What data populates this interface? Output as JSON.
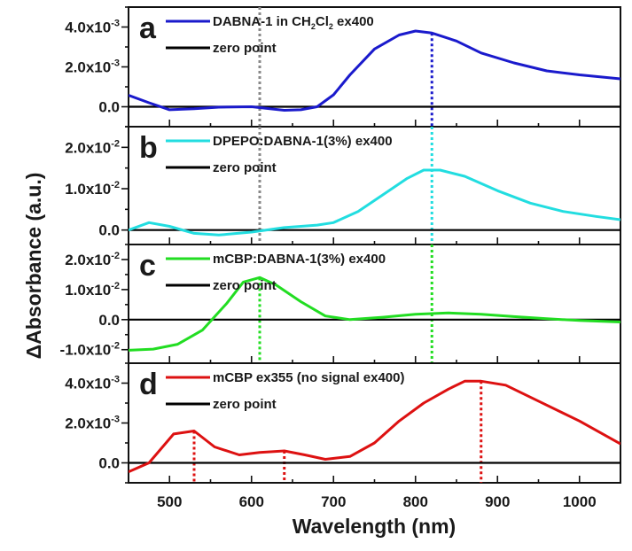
{
  "chart_data": {
    "type": "line",
    "title": "",
    "xlabel": "Wavelength (nm)",
    "ylabel": "ΔAbsorbance (a.u.)",
    "xlim": [
      450,
      1050
    ],
    "x_ticks": [
      500,
      600,
      700,
      800,
      900,
      1000
    ],
    "x_tick_labels": [
      "500",
      "600",
      "700",
      "800",
      "900",
      "1000"
    ],
    "grid": false,
    "panels": [
      {
        "id": "a",
        "label": "a",
        "ylim": [
          -0.001,
          0.005
        ],
        "y_ticks": [
          0.0,
          0.002,
          0.004
        ],
        "y_tick_labels": [
          {
            "mantissa": "0.0",
            "exp": ""
          },
          {
            "mantissa": "2.0x10",
            "exp": "-3"
          },
          {
            "mantissa": "4.0x10",
            "exp": "-3"
          }
        ],
        "legend": [
          {
            "name_parts": [
              [
                "DABNA-1 in CH",
                ""
              ],
              [
                "2",
                "sub"
              ],
              [
                "Cl",
                ""
              ],
              [
                "2",
                "sub"
              ],
              [
                " ex400",
                ""
              ]
            ],
            "color": "#1a1acc"
          },
          {
            "name_parts": [
              [
                "zero point",
                ""
              ]
            ],
            "color": "#000000"
          }
        ],
        "series": [
          {
            "name": "DABNA-1 in CH2Cl2 ex400",
            "color": "#1a1acc",
            "x": [
              450,
              475,
              500,
              530,
              560,
              600,
              640,
              660,
              680,
              700,
              720,
              750,
              780,
              800,
              820,
              850,
              880,
              920,
              960,
              1000,
              1050
            ],
            "y": [
              0.00058,
              0.0002,
              -0.00015,
              -0.0001,
              -2e-05,
              0.0,
              -0.00018,
              -0.00015,
              0.0,
              0.0006,
              0.0016,
              0.0029,
              0.0036,
              0.0038,
              0.0037,
              0.0033,
              0.0027,
              0.0022,
              0.0018,
              0.0016,
              0.0014
            ]
          },
          {
            "name": "zero point",
            "color": "#000000",
            "x": [
              450,
              1050
            ],
            "y": [
              0.0,
              0.0
            ]
          }
        ],
        "markers": [
          {
            "x": 610,
            "color": "#888888",
            "y": 0.0018,
            "span": "full"
          },
          {
            "x": 820,
            "color": "#1a1acc",
            "y": 0.0037
          }
        ]
      },
      {
        "id": "b",
        "label": "b",
        "ylim": [
          -0.0035,
          0.025
        ],
        "y_ticks": [
          0.0,
          0.01,
          0.02
        ],
        "y_tick_labels": [
          {
            "mantissa": "0.0",
            "exp": ""
          },
          {
            "mantissa": "1.0x10",
            "exp": "-2"
          },
          {
            "mantissa": "2.0x10",
            "exp": "-2"
          }
        ],
        "legend": [
          {
            "name_parts": [
              [
                "DPEPO:DABNA-1(3%) ex400",
                ""
              ]
            ],
            "color": "#22dde0"
          },
          {
            "name_parts": [
              [
                "zero point",
                ""
              ]
            ],
            "color": "#000000"
          }
        ],
        "series": [
          {
            "name": "DPEPO:DABNA-1(3%) ex400",
            "color": "#22dde0",
            "x": [
              450,
              475,
              500,
              530,
              560,
              600,
              640,
              680,
              700,
              730,
              760,
              790,
              810,
              830,
              860,
              900,
              940,
              980,
              1020,
              1050
            ],
            "y": [
              0.0,
              0.0018,
              0.0009,
              -0.0008,
              -0.0012,
              -0.0005,
              0.0006,
              0.0012,
              0.0018,
              0.0045,
              0.0085,
              0.0125,
              0.0145,
              0.0145,
              0.013,
              0.0095,
              0.0065,
              0.0045,
              0.0033,
              0.0025
            ]
          },
          {
            "name": "zero point",
            "color": "#000000",
            "x": [
              450,
              1050
            ],
            "y": [
              0.0,
              0.0
            ]
          }
        ],
        "markers": [
          {
            "x": 610,
            "color": "#888888",
            "y": 0.025,
            "span": "full"
          },
          {
            "x": 820,
            "color": "#22dde0",
            "y": 0.025,
            "span": "full"
          }
        ]
      },
      {
        "id": "c",
        "label": "c",
        "ylim": [
          -0.0145,
          0.025
        ],
        "y_ticks": [
          -0.01,
          0.0,
          0.01,
          0.02
        ],
        "y_tick_labels": [
          {
            "mantissa": "-1.0x10",
            "exp": "-2"
          },
          {
            "mantissa": "0.0",
            "exp": ""
          },
          {
            "mantissa": "1.0x10",
            "exp": "-2"
          },
          {
            "mantissa": "2.0x10",
            "exp": "-2"
          }
        ],
        "legend": [
          {
            "name_parts": [
              [
                "mCBP:DABNA-1(3%) ex400",
                ""
              ]
            ],
            "color": "#22dd22"
          },
          {
            "name_parts": [
              [
                "zero point",
                ""
              ]
            ],
            "color": "#000000"
          }
        ],
        "series": [
          {
            "name": "mCBP:DABNA-1(3%) ex400",
            "color": "#22dd22",
            "x": [
              450,
              480,
              510,
              540,
              570,
              590,
              610,
              630,
              660,
              690,
              720,
              760,
              800,
              840,
              880,
              920,
              960,
              1000,
              1050
            ],
            "y": [
              -0.0102,
              -0.0098,
              -0.0082,
              -0.0035,
              0.0055,
              0.0125,
              0.014,
              0.0115,
              0.006,
              0.0012,
              0.0,
              0.0008,
              0.0018,
              0.0022,
              0.0018,
              0.001,
              0.0003,
              -0.0003,
              -0.0008
            ]
          },
          {
            "name": "zero point",
            "color": "#000000",
            "x": [
              450,
              1050
            ],
            "y": [
              0.0,
              0.0
            ]
          }
        ],
        "markers": [
          {
            "x": 610,
            "color": "#22dd22",
            "y": 0.014
          },
          {
            "x": 820,
            "color": "#22dd22",
            "y": 0.025,
            "span": "full"
          }
        ]
      },
      {
        "id": "d",
        "label": "d",
        "ylim": [
          -0.001,
          0.005
        ],
        "y_ticks": [
          0.0,
          0.002,
          0.004
        ],
        "y_tick_labels": [
          {
            "mantissa": "0.0",
            "exp": ""
          },
          {
            "mantissa": "2.0x10",
            "exp": "-3"
          },
          {
            "mantissa": "4.0x10",
            "exp": "-3"
          }
        ],
        "legend": [
          {
            "name_parts": [
              [
                "mCBP ex355 (no signal ex400)",
                ""
              ]
            ],
            "color": "#dd1111"
          },
          {
            "name_parts": [
              [
                "zero point",
                ""
              ]
            ],
            "color": "#000000"
          }
        ],
        "series": [
          {
            "name": "mCBP ex355 (no signal ex400)",
            "color": "#dd1111",
            "x": [
              450,
              475,
              505,
              530,
              555,
              585,
              610,
              640,
              665,
              690,
              720,
              750,
              780,
              810,
              840,
              860,
              880,
              910,
              950,
              1000,
              1050
            ],
            "y": [
              -0.00045,
              0.0,
              0.00145,
              0.0016,
              0.0008,
              0.0004,
              0.00052,
              0.0006,
              0.0004,
              0.00018,
              0.00032,
              0.001,
              0.0021,
              0.003,
              0.0037,
              0.0041,
              0.0041,
              0.0039,
              0.0031,
              0.0021,
              0.00095
            ]
          },
          {
            "name": "zero point",
            "color": "#000000",
            "x": [
              450,
              1050
            ],
            "y": [
              0.0,
              0.0
            ]
          }
        ],
        "markers": [
          {
            "x": 530,
            "color": "#dd1111",
            "y": 0.0016
          },
          {
            "x": 640,
            "color": "#dd1111",
            "y": 0.0006
          },
          {
            "x": 880,
            "color": "#dd1111",
            "y": 0.0041
          }
        ]
      }
    ]
  }
}
